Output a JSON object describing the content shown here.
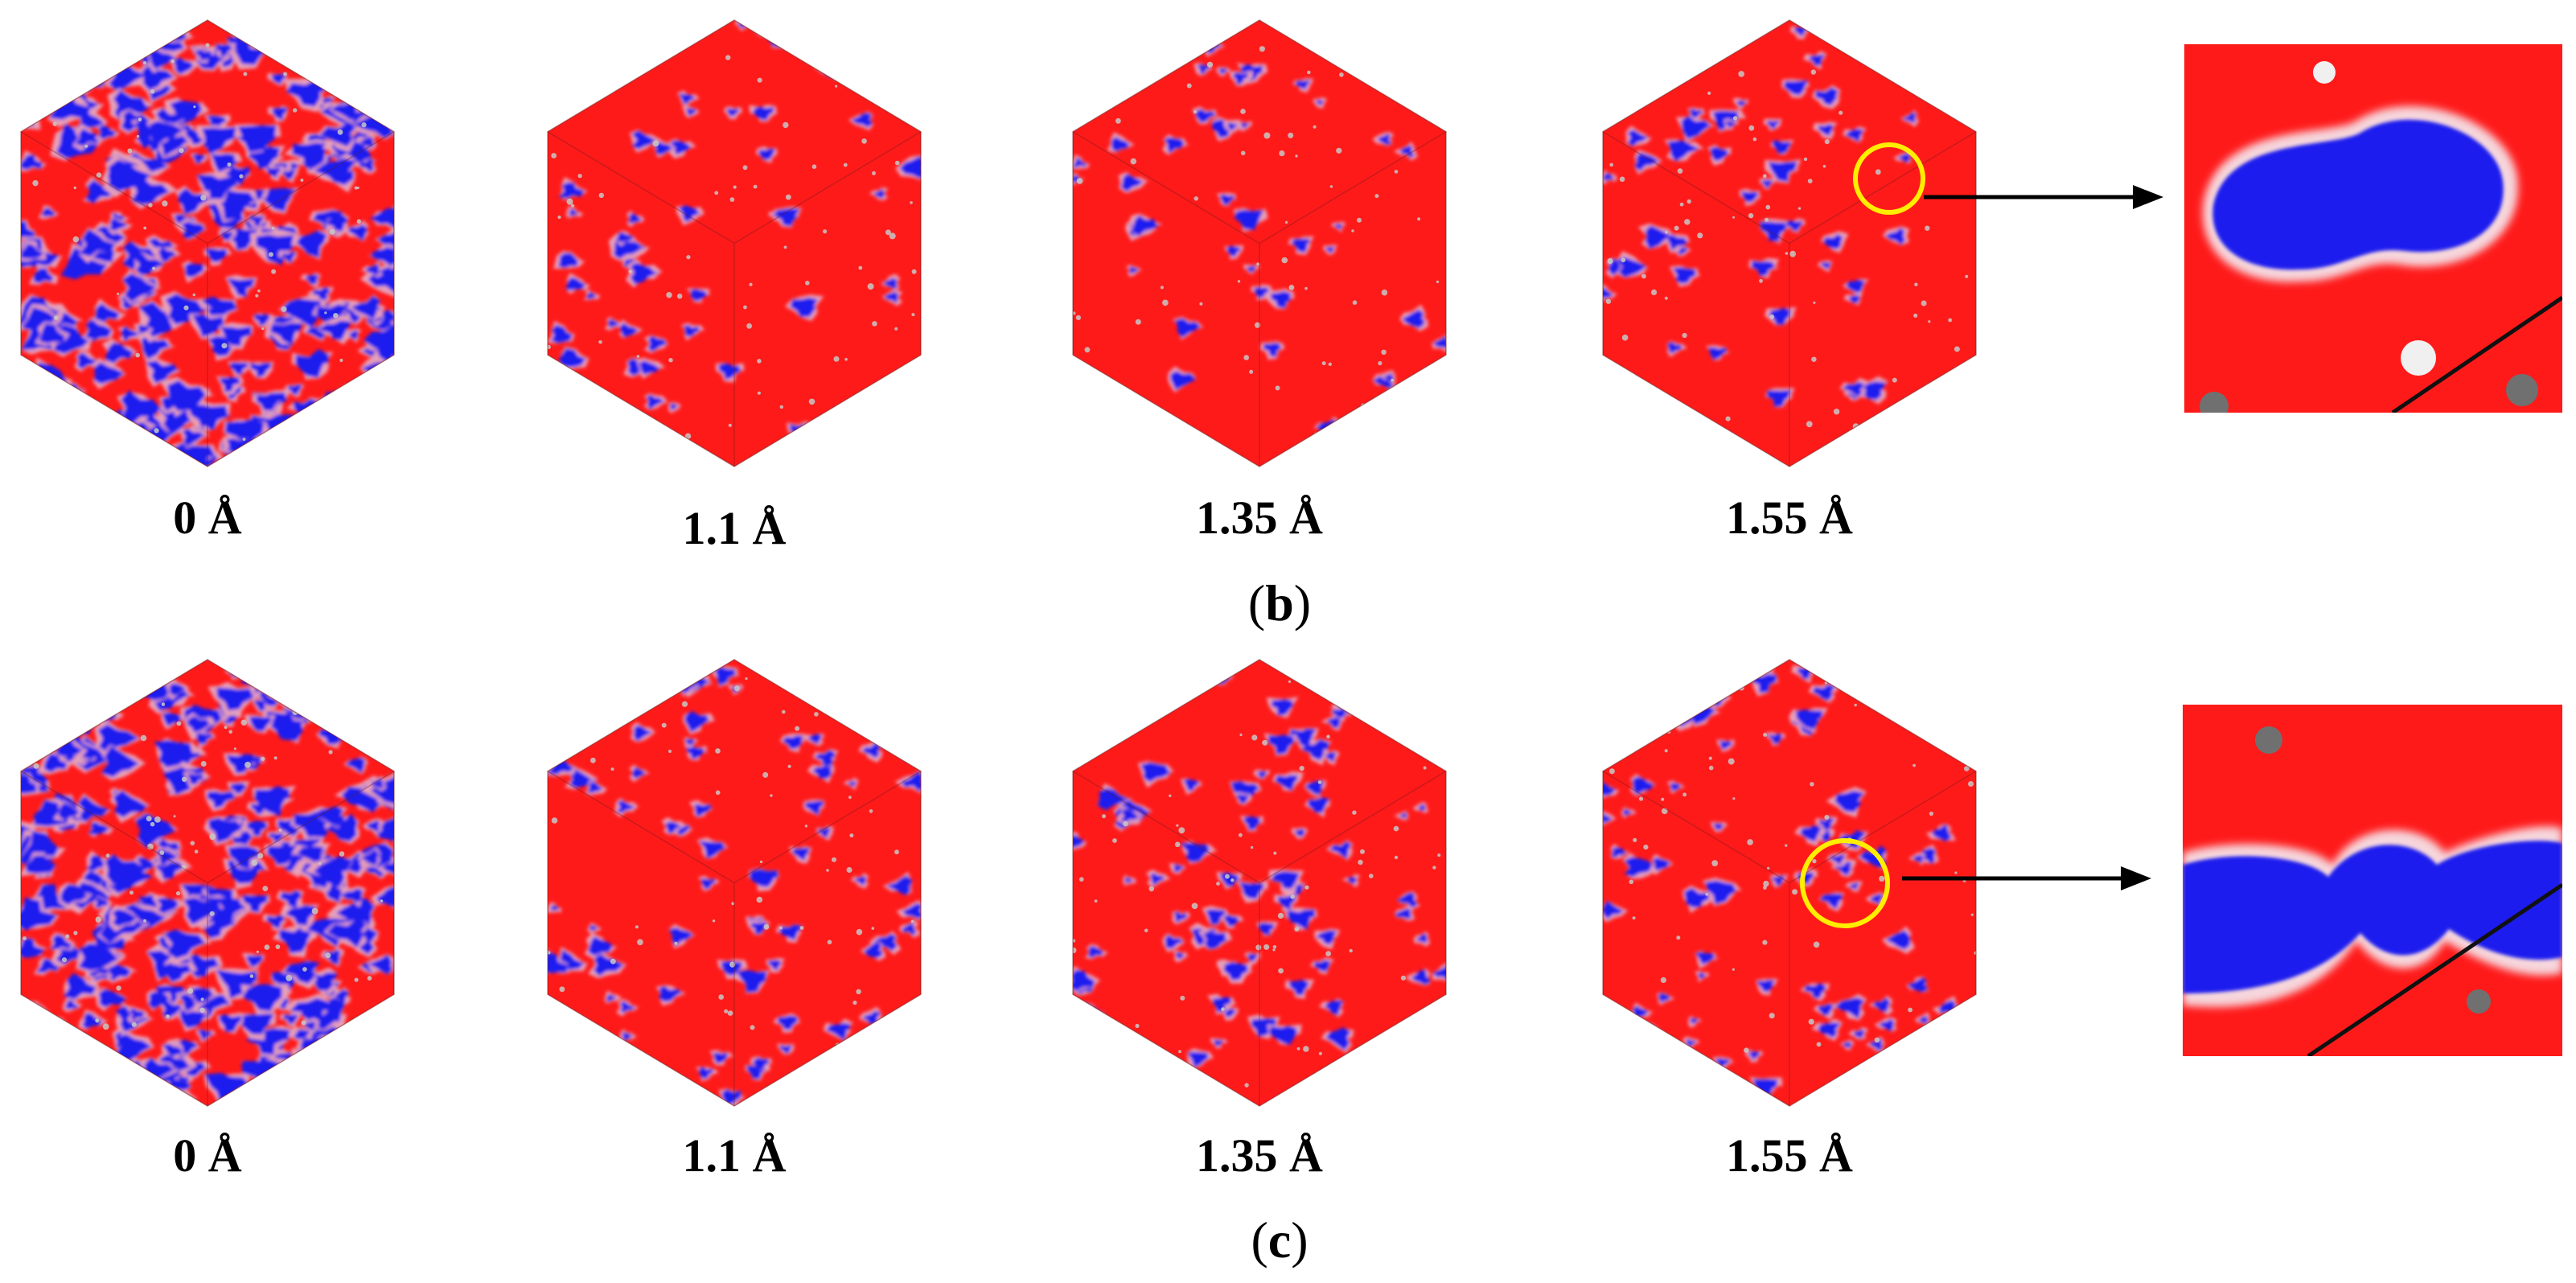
{
  "colors": {
    "matrix": "#ff1a1a",
    "pore": "#1a1aee",
    "edge_light": "#f4d0d0",
    "highlight_circle": "#ffee00",
    "arrow": "#000000",
    "particle": "#c8c8c8"
  },
  "rows": [
    {
      "panel_label": "b",
      "cubes": [
        {
          "label": "0 Å",
          "pore_level": "high"
        },
        {
          "label": "1.1 Å",
          "pore_level": "low"
        },
        {
          "label": "1.35 Å",
          "pore_level": "low"
        },
        {
          "label": "1.55 Å",
          "pore_level": "low",
          "highlighted": true
        }
      ],
      "zoom_inset": "single elongated pore"
    },
    {
      "panel_label": "c",
      "cubes": [
        {
          "label": "0 Å",
          "pore_level": "high"
        },
        {
          "label": "1.1 Å",
          "pore_level": "medium"
        },
        {
          "label": "1.35 Å",
          "pore_level": "medium"
        },
        {
          "label": "1.55 Å",
          "pore_level": "medium",
          "highlighted": true
        }
      ],
      "zoom_inset": "two connected pores"
    }
  ]
}
